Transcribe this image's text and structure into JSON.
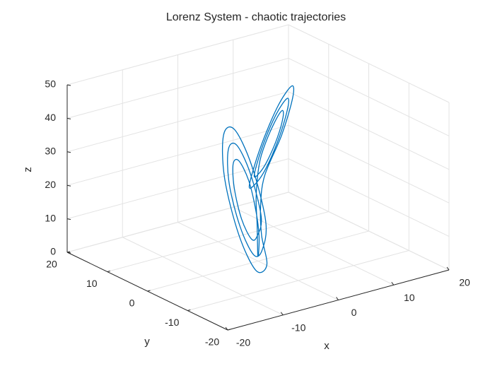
{
  "chart_data": {
    "type": "line3d",
    "title": "Lorenz System - chaotic trajectories",
    "xlabel": "x",
    "ylabel": "y",
    "zlabel": "z",
    "xlim": [
      -20,
      20
    ],
    "ylim": [
      -20,
      20
    ],
    "zlim": [
      0,
      50
    ],
    "xticks": [
      -20,
      -10,
      0,
      10,
      20
    ],
    "yticks": [
      -20,
      -10,
      0,
      10,
      20
    ],
    "zticks": [
      0,
      10,
      20,
      30,
      40,
      50
    ],
    "grid": true,
    "series": [
      {
        "color": "#0072bd",
        "x": [
          0.3,
          2,
          4,
          8.5,
          12.0,
          13.5,
          12.0,
          8.5,
          5.0,
          3.5,
          5.0,
          8.5,
          13.5,
          15.5,
          13.5,
          8.5,
          3.5,
          1.5,
          3.5,
          8.5,
          14.9,
          17.5,
          14.9,
          8.5,
          2.1,
          -0.5,
          -1,
          -3,
          -8.5,
          -14.9,
          -17.5,
          -14.9,
          -8.5,
          -2.1,
          0.5,
          -2.1,
          -8.5,
          -13.5,
          -15.5,
          -13.5,
          -8.5,
          -3.5,
          -1.5,
          -3.5,
          -8.5,
          -12.0,
          -13.5,
          -12.0,
          -8.5,
          -5.0,
          -3.5,
          -5.0,
          -2,
          -0.3
        ],
        "y": [
          0.5,
          3,
          6,
          11.5,
          14.9,
          14.5,
          10.6,
          5.5,
          2.1,
          2.5,
          6.4,
          12.7,
          17.5,
          16.9,
          11.4,
          4.3,
          -0.5,
          0.1,
          5.6,
          13.9,
          20.0,
          19.3,
          12.2,
          3.1,
          -3.0,
          -2.3,
          -2,
          -5,
          -13.9,
          -20.0,
          -19.3,
          -12.2,
          -3.1,
          3.0,
          2.3,
          -4.8,
          -12.7,
          -17.5,
          -16.9,
          -11.4,
          -4.3,
          0.5,
          -0.1,
          -5.6,
          -11.5,
          -14.9,
          -14.5,
          -10.6,
          -5.5,
          -2.1,
          -2.5,
          -6.4,
          -3,
          -0.5
        ],
        "z": [
          1,
          8,
          14,
          18,
          20.6,
          27,
          33.4,
          36,
          33.4,
          27,
          20.6,
          14.4,
          18.1,
          27,
          35.9,
          39.6,
          35.9,
          27,
          18.1,
          10.8,
          15.5,
          27,
          38.5,
          43.2,
          38.5,
          27,
          18,
          12,
          10.8,
          15.5,
          27,
          38.5,
          43.2,
          38.5,
          27,
          15.5,
          14.4,
          18.1,
          27,
          35.9,
          39.6,
          35.9,
          27,
          18.1,
          18,
          20.6,
          27,
          33.4,
          36,
          33.4,
          27,
          20.6,
          10,
          2
        ]
      }
    ]
  }
}
